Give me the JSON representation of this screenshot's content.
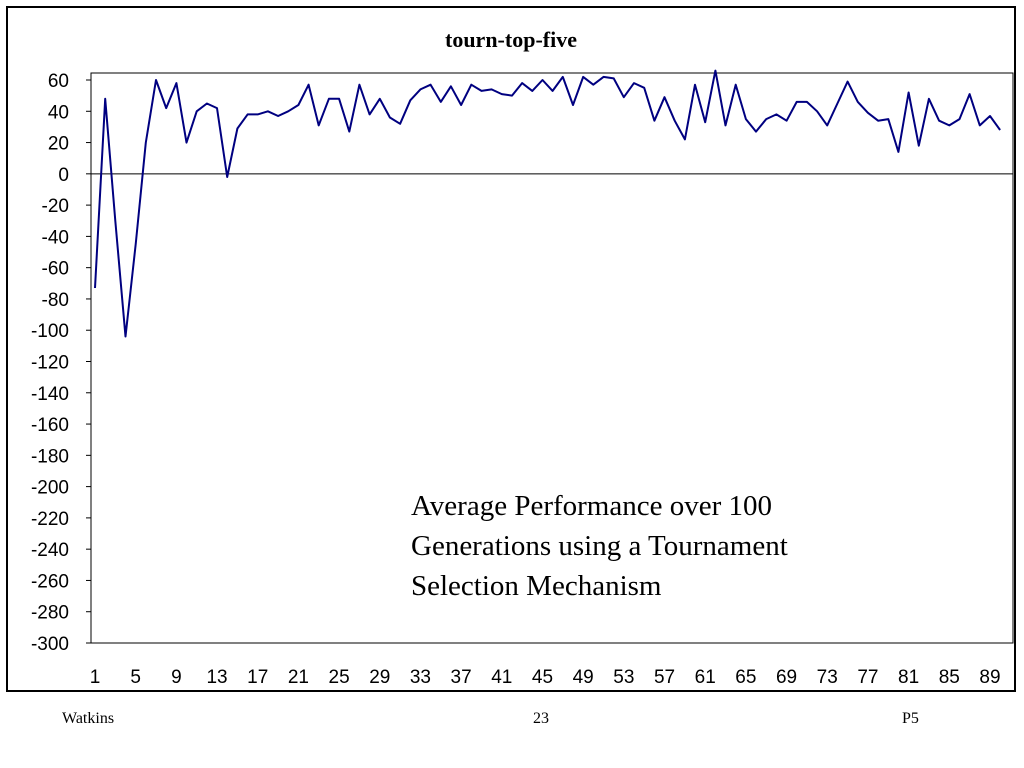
{
  "chart_data": {
    "type": "line",
    "title": "tourn-top-five",
    "xlabel": "",
    "ylabel": "",
    "ylim": [
      -300,
      60
    ],
    "yticks": [
      60,
      40,
      20,
      0,
      -20,
      -40,
      -60,
      -80,
      -100,
      -120,
      -140,
      -160,
      -180,
      -200,
      -220,
      -240,
      -260,
      -280,
      -300
    ],
    "x": [
      1,
      2,
      3,
      4,
      5,
      6,
      7,
      8,
      9,
      10,
      11,
      12,
      13,
      14,
      15,
      16,
      17,
      18,
      19,
      20,
      21,
      22,
      23,
      24,
      25,
      26,
      27,
      28,
      29,
      30,
      31,
      32,
      33,
      34,
      35,
      36,
      37,
      38,
      39,
      40,
      41,
      42,
      43,
      44,
      45,
      46,
      47,
      48,
      49,
      50,
      51,
      52,
      53,
      54,
      55,
      56,
      57,
      58,
      59,
      60,
      61,
      62,
      63,
      64,
      65,
      66,
      67,
      68,
      69,
      70,
      71,
      72,
      73,
      74,
      75,
      76,
      77,
      78,
      79,
      80,
      81,
      82,
      83,
      84,
      85,
      86,
      87,
      88,
      89,
      90
    ],
    "xticks": [
      1,
      5,
      9,
      13,
      17,
      21,
      25,
      29,
      33,
      37,
      41,
      45,
      49,
      53,
      57,
      61,
      65,
      69,
      73,
      77,
      81,
      85,
      89
    ],
    "series": [
      {
        "values": [
          -73,
          48,
          -30,
          -104,
          -45,
          20,
          60,
          42,
          58,
          20,
          40,
          45,
          42,
          -2,
          29,
          38,
          38,
          40,
          37,
          40,
          44,
          57,
          31,
          48,
          48,
          27,
          57,
          38,
          48,
          36,
          32,
          47,
          54,
          57,
          46,
          56,
          44,
          57,
          53,
          54,
          51,
          50,
          58,
          53,
          60,
          53,
          62,
          44,
          62,
          57,
          62,
          61,
          49,
          58,
          55,
          34,
          49,
          34,
          22,
          57,
          33,
          66,
          31,
          57,
          35,
          27,
          35,
          38,
          34,
          46,
          46,
          40,
          31,
          45,
          59,
          46,
          39,
          34,
          35,
          14,
          52,
          18,
          48,
          34,
          31,
          35,
          51,
          31,
          37,
          28
        ]
      }
    ],
    "annotation": "Average Performance over 100\nGenerations using a Tournament\nSelection Mechanism",
    "colors": {
      "line": "#000080",
      "zero_line": "#000000"
    },
    "grid": false,
    "legend": "none"
  },
  "footer": {
    "left": "Watkins",
    "center": "23",
    "right": "P5"
  }
}
